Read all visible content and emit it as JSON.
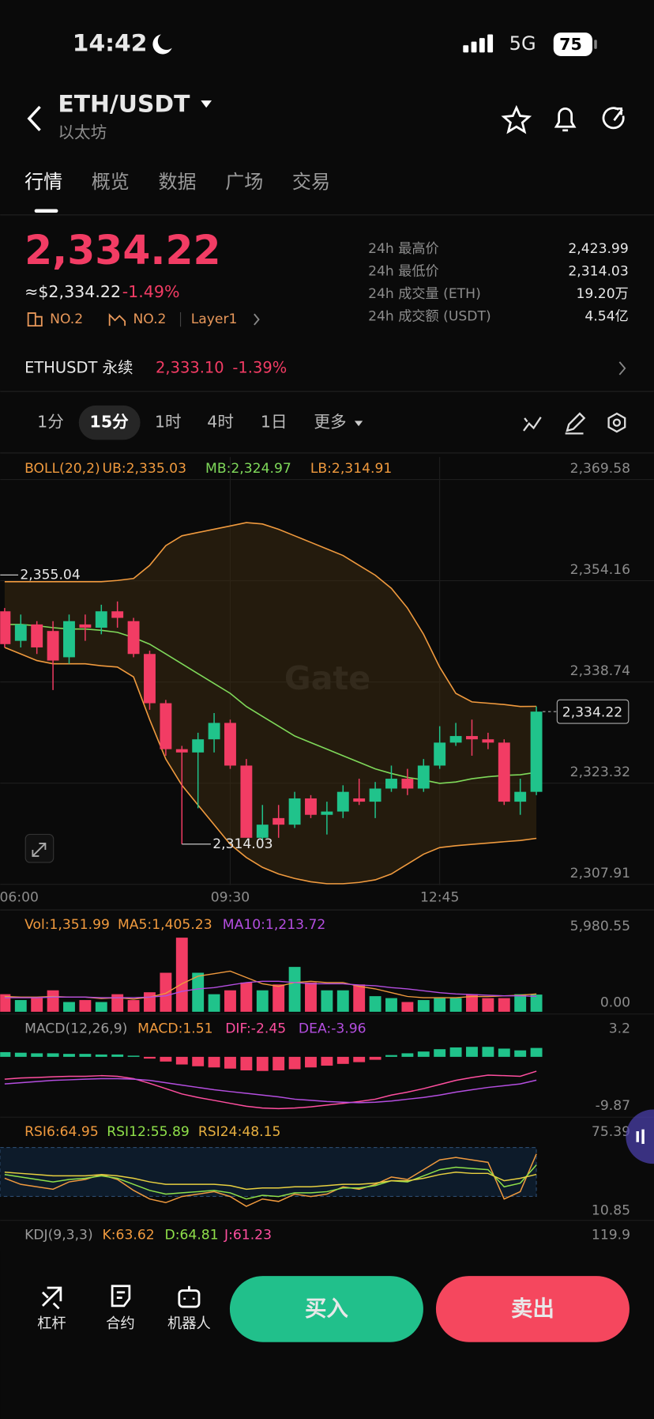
{
  "status": {
    "time": "14:42",
    "network": "5G",
    "battery": "75"
  },
  "header": {
    "pair": "ETH/USDT",
    "name": "以太坊"
  },
  "tabs": [
    "行情",
    "概览",
    "数据",
    "广场",
    "交易"
  ],
  "price": {
    "last": "2,334.22",
    "usd": "≈$2,334.22",
    "change": "-1.49%",
    "rank_market_cap": "NO.2",
    "rank_volume": "NO.2",
    "sector": "Layer1"
  },
  "stats": [
    {
      "label": "24h 最高价",
      "value": "2,423.99"
    },
    {
      "label": "24h 最低价",
      "value": "2,314.03"
    },
    {
      "label": "24h 成交量 (ETH)",
      "value": "19.20万"
    },
    {
      "label": "24h 成交额 (USDT)",
      "value": "4.54亿"
    }
  ],
  "perpetual": {
    "name": "ETHUSDT 永续",
    "price": "2,333.10",
    "change": "-1.39%"
  },
  "intervals": [
    "1分",
    "15分",
    "1时",
    "4时",
    "1日",
    "更多"
  ],
  "chart_data": [
    {
      "type": "candlestick",
      "legend": [
        {
          "text": "BOLL(20,2)",
          "color": "#f09a3e"
        },
        {
          "text": "UB:2,335.03",
          "color": "#f09a3e"
        },
        {
          "text": "MB:2,324.97",
          "color": "#7fd95a"
        },
        {
          "text": "LB:2,314.91",
          "color": "#f09a3e"
        }
      ],
      "watermark": "Gate",
      "categories": [
        "06:00",
        null,
        null,
        null,
        null,
        null,
        null,
        null,
        null,
        null,
        null,
        null,
        null,
        null,
        "09:30",
        null,
        null,
        null,
        null,
        null,
        null,
        null,
        null,
        null,
        null,
        null,
        null,
        "12:45",
        null,
        null,
        null,
        null,
        null,
        null
      ],
      "open": [
        2349.5,
        2345,
        2347.5,
        2346.5,
        2342.5,
        2347.5,
        2347,
        2349.5,
        2348,
        2343,
        2335.5,
        2328.5,
        2328,
        2330,
        2332.5,
        2326,
        2315,
        2318,
        2317,
        2321,
        2318.5,
        2319,
        2321,
        2320.5,
        2322.5,
        2324,
        2322.5,
        2326,
        2329.5,
        2330.5,
        2330,
        2329.5,
        2320.5,
        2322
      ],
      "high": [
        2350,
        2349,
        2348,
        2348,
        2349,
        2349,
        2350.5,
        2351,
        2348.5,
        2343.5,
        2336,
        2329,
        2331,
        2334,
        2333,
        2327,
        2320,
        2320,
        2322,
        2321.5,
        2320.5,
        2323,
        2324,
        2323.5,
        2326,
        2325.5,
        2327,
        2332,
        2332.5,
        2333,
        2331,
        2330,
        2324,
        2335
      ],
      "low": [
        2344,
        2344,
        2343,
        2337.5,
        2341.5,
        2345,
        2346,
        2347,
        2342.5,
        2334.5,
        2327.5,
        2314.03,
        2319.5,
        2328,
        2325.5,
        2315.5,
        2314.5,
        2315,
        2316.5,
        2318,
        2315.5,
        2318,
        2320,
        2318,
        2322,
        2321.5,
        2322,
        2325.5,
        2329,
        2327.5,
        2328.5,
        2320,
        2318.5,
        2321.5
      ],
      "close": [
        2344.5,
        2347.5,
        2344,
        2342,
        2348,
        2347,
        2349.5,
        2348.5,
        2343,
        2335.5,
        2328.5,
        2328,
        2330,
        2332.5,
        2326,
        2315,
        2317,
        2317,
        2321,
        2318.5,
        2319,
        2322,
        2320.5,
        2322.5,
        2324,
        2322.5,
        2326,
        2329.5,
        2330.5,
        2330,
        2329.5,
        2320.5,
        2322,
        2334.22
      ],
      "boll": {
        "ub": [
          2354,
          2354,
          2354,
          2354,
          2354,
          2354,
          2354,
          2354.2,
          2354.5,
          2356.5,
          2359.5,
          2361,
          2361.5,
          2362,
          2362.5,
          2363,
          2362.8,
          2362,
          2361,
          2360,
          2359,
          2358,
          2356.5,
          2355,
          2353,
          2350,
          2346,
          2341,
          2337,
          2335.7,
          2335.5,
          2335.3,
          2335,
          2335.03
        ],
        "mb": [
          2347.5,
          2347.5,
          2347.3,
          2347,
          2346.8,
          2346.8,
          2346.6,
          2346.3,
          2345.5,
          2344.5,
          2343,
          2341.5,
          2340,
          2338.5,
          2337,
          2335,
          2333.5,
          2332,
          2330.5,
          2329.5,
          2328.5,
          2327.5,
          2326.5,
          2325.5,
          2324.8,
          2324.2,
          2323.8,
          2323.3,
          2323.5,
          2324,
          2324.3,
          2324.5,
          2324.6,
          2324.97
        ],
        "lb": [
          2344,
          2343,
          2342,
          2341.5,
          2341.5,
          2341.5,
          2341.2,
          2341,
          2339.5,
          2333,
          2327,
          2323,
          2320,
          2317,
          2314,
          2312,
          2310.5,
          2309.5,
          2308.8,
          2308.3,
          2308,
          2308,
          2308.2,
          2308.6,
          2309.5,
          2311,
          2312.5,
          2313.5,
          2313.8,
          2314,
          2314.2,
          2314.4,
          2314.6,
          2314.91
        ]
      },
      "colors": {
        "up": "#20c38b",
        "down": "#f23c64",
        "ub": "#f09a3e",
        "mb": "#7fd95a",
        "lb": "#f09a3e",
        "band": "#3a2a10"
      },
      "ylim": [
        2307.8,
        2373.0
      ],
      "yticks": [
        {
          "value": 2369.58,
          "label": "2,369.58"
        },
        {
          "value": 2354.16,
          "label": "2,354.16"
        },
        {
          "value": 2338.74,
          "label": "2,338.74"
        },
        {
          "value": 2323.32,
          "label": "2,323.32"
        },
        {
          "value": 2307.91,
          "label": "2,307.91"
        }
      ],
      "annotations": {
        "high": {
          "value": 2355.04,
          "label": "2,355.04"
        },
        "low": {
          "value": 2314.03,
          "label": "2,314.03"
        },
        "last": {
          "value": 2334.22,
          "label": "2,334.22"
        }
      },
      "grid": true
    },
    {
      "type": "volume",
      "legend": [
        {
          "text": "Vol:1,351.99",
          "color": "#f09a3e"
        },
        {
          "text": "MA5:1,405.23",
          "color": "#f09a3e"
        },
        {
          "text": "MA10:1,213.72",
          "color": "#b44ee0"
        }
      ],
      "values": [
        1381,
        920,
        1074,
        1687,
        767,
        920,
        767,
        1381,
        920,
        1534,
        3068,
        5830,
        3068,
        1381,
        1687,
        2301,
        1687,
        2148,
        3528,
        2301,
        1687,
        1687,
        2148,
        1227,
        1074,
        767,
        920,
        1074,
        1074,
        1381,
        1074,
        1074,
        1381,
        1351.99
      ],
      "ma5": [
        1200,
        1150,
        1150,
        1200,
        1150,
        1150,
        1050,
        1100,
        1000,
        1150,
        1450,
        2200,
        2800,
        3000,
        3200,
        2700,
        2200,
        2000,
        2300,
        2400,
        2300,
        2300,
        2000,
        1800,
        1500,
        1200,
        1100,
        1100,
        1100,
        1200,
        1200,
        1250,
        1300,
        1405.23
      ],
      "ma10": [
        1100,
        1100,
        1100,
        1150,
        1150,
        1150,
        1100,
        1100,
        1100,
        1150,
        1250,
        1600,
        1800,
        1900,
        2100,
        2300,
        2400,
        2400,
        2300,
        2200,
        2200,
        2200,
        2100,
        2050,
        1900,
        1800,
        1650,
        1500,
        1400,
        1350,
        1300,
        1250,
        1250,
        1213.72
      ],
      "colors": {
        "up": "#20c38b",
        "down": "#f23c64",
        "ma5": "#f09a3e",
        "ma10": "#b44ee0"
      },
      "ylim": [
        0,
        5980.55
      ],
      "yticks": [
        {
          "value": 5980.55,
          "label": "5,980.55"
        },
        {
          "value": 0,
          "label": "0.00"
        }
      ]
    },
    {
      "type": "macd",
      "legend": [
        {
          "text": "MACD(12,26,9)",
          "color": "#9a9a9a"
        },
        {
          "text": "MACD:1.51",
          "color": "#f09a3e"
        },
        {
          "text": "DIF:-2.45",
          "color": "#ff4fa0"
        },
        {
          "text": "DEA:-3.96",
          "color": "#b44ee0"
        }
      ],
      "hist": [
        0.8,
        0.7,
        0.6,
        0.6,
        0.5,
        0.5,
        0.4,
        0.4,
        0.2,
        -0.3,
        -0.8,
        -1.3,
        -1.6,
        -1.8,
        -2.0,
        -2.3,
        -2.4,
        -2.3,
        -2.1,
        -1.8,
        -1.5,
        -1.2,
        -0.9,
        -0.5,
        0.3,
        0.6,
        0.9,
        1.3,
        1.6,
        1.7,
        1.7,
        1.4,
        1.1,
        1.51
      ],
      "dif": [
        -3.8,
        -3.6,
        -3.5,
        -3.4,
        -3.3,
        -3.3,
        -3.2,
        -3.3,
        -3.7,
        -4.5,
        -5.4,
        -6.3,
        -6.9,
        -7.4,
        -7.9,
        -8.4,
        -8.7,
        -8.8,
        -8.7,
        -8.5,
        -8.2,
        -7.9,
        -7.6,
        -7.2,
        -6.5,
        -6.0,
        -5.4,
        -4.7,
        -4.0,
        -3.5,
        -3.1,
        -3.2,
        -3.3,
        -2.45
      ],
      "dea": [
        -4.6,
        -4.4,
        -4.2,
        -4.0,
        -3.9,
        -3.8,
        -3.7,
        -3.7,
        -3.8,
        -4.0,
        -4.4,
        -4.8,
        -5.2,
        -5.6,
        -5.9,
        -6.2,
        -6.5,
        -6.8,
        -7.2,
        -7.4,
        -7.6,
        -7.7,
        -7.8,
        -7.7,
        -7.5,
        -7.2,
        -6.9,
        -6.5,
        -6.0,
        -5.6,
        -5.2,
        -4.9,
        -4.6,
        -3.96
      ],
      "colors": {
        "up": "#20c38b",
        "down": "#f23c64",
        "dif": "#ff4fa0",
        "dea": "#b44ee0"
      },
      "ylim": [
        -9.87,
        3.2
      ],
      "yticks": [
        3.2,
        -9.87
      ]
    },
    {
      "type": "rsi",
      "legend": [
        {
          "text": "RSI6:64.95",
          "color": "#f09a3e"
        },
        {
          "text": "RSI12:55.89",
          "color": "#8fe04a"
        },
        {
          "text": "RSI24:48.15",
          "color": "#e8b040"
        }
      ],
      "series": [
        {
          "color": "#f09a3e",
          "values": [
            45,
            40,
            38,
            36,
            42,
            44,
            48,
            44,
            35,
            28,
            25,
            30,
            32,
            34,
            30,
            22,
            28,
            26,
            32,
            30,
            32,
            38,
            36,
            40,
            46,
            44,
            52,
            60,
            62,
            60,
            58,
            28,
            34,
            64.95
          ]
        },
        {
          "color": "#8fe04a",
          "values": [
            48,
            46,
            44,
            42,
            44,
            45,
            47,
            45,
            40,
            35,
            32,
            33,
            34,
            35,
            33,
            28,
            31,
            30,
            33,
            33,
            34,
            37,
            37,
            39,
            43,
            42,
            47,
            52,
            54,
            53,
            52,
            38,
            41,
            55.89
          ]
        },
        {
          "color": "#e8d040",
          "values": [
            50,
            49,
            48,
            47,
            47,
            47,
            48,
            47,
            45,
            42,
            40,
            40,
            40,
            40,
            39,
            36,
            37,
            37,
            38,
            38,
            39,
            40,
            40,
            41,
            43,
            43,
            45,
            48,
            50,
            49,
            49,
            43,
            45,
            48.15
          ]
        }
      ],
      "ylim": [
        10.85,
        75.39
      ],
      "yticks": [
        75.39,
        10.85
      ]
    },
    {
      "type": "kdj",
      "legend": [
        {
          "text": "KDJ(9,3,3)",
          "color": "#9a9a9a"
        },
        {
          "text": "K:63.62",
          "color": "#f09a3e"
        },
        {
          "text": "D:64.81",
          "color": "#8fe04a"
        },
        {
          "text": "J:61.23",
          "color": "#ff4fa0"
        }
      ],
      "yticks": [
        119.9
      ]
    }
  ],
  "bottom_bar": {
    "leverage": "杠杆",
    "contract": "合约",
    "bot": "机器人",
    "buy": "买入",
    "sell": "卖出"
  }
}
